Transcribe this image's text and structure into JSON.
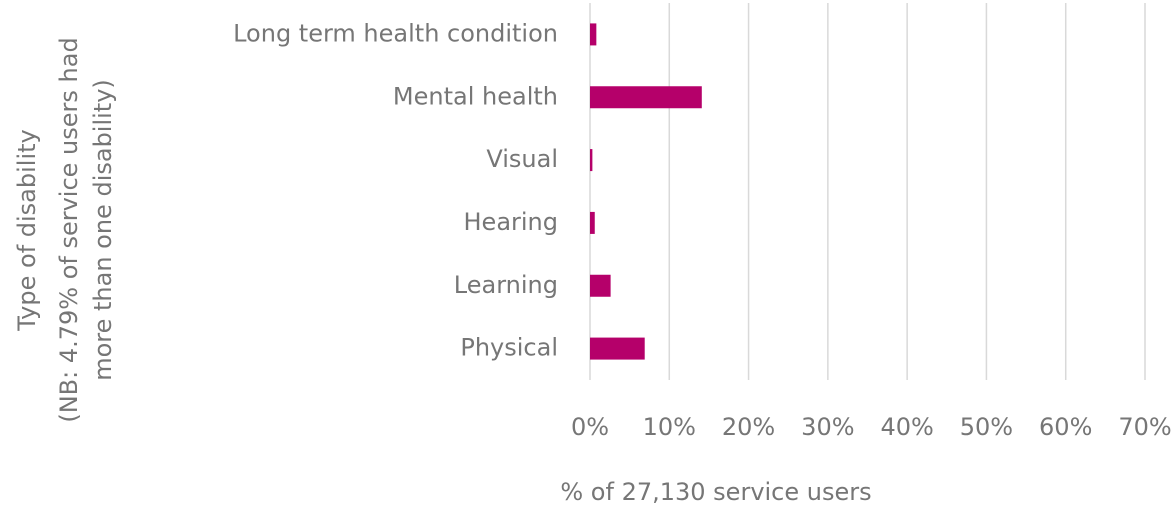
{
  "chart_data": {
    "type": "bar",
    "orientation": "horizontal",
    "categories": [
      "Long term health condition",
      "Mental health",
      "Visual",
      "Hearing",
      "Learning",
      "Physical"
    ],
    "values": [
      0.8,
      14.1,
      0.3,
      0.6,
      2.6,
      6.9
    ],
    "color": "#b5006a",
    "x_label": "% of 27,130 service users",
    "y_label": [
      "Type of disability",
      "(NB: 4.79% of service users had",
      "more than one disability)"
    ],
    "xlim": [
      0,
      70
    ],
    "xticks": [
      {
        "value": 0,
        "label": "0%"
      },
      {
        "value": 10,
        "label": "10%"
      },
      {
        "value": 20,
        "label": "20%"
      },
      {
        "value": 30,
        "label": "30%"
      },
      {
        "value": 40,
        "label": "40%"
      },
      {
        "value": 50,
        "label": "50%"
      },
      {
        "value": 60,
        "label": "60%"
      },
      {
        "value": 70,
        "label": "70%"
      }
    ],
    "grid": true
  }
}
